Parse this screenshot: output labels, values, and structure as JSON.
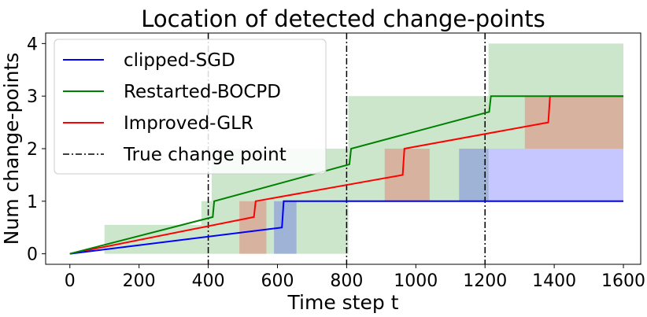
{
  "chart_data": {
    "type": "line",
    "title": "Location of detected change-points",
    "xlabel": "Time step t",
    "ylabel": "Num change-points",
    "xlim": [
      -70,
      1650
    ],
    "ylim": [
      -0.2,
      4.2
    ],
    "xticks": [
      0,
      200,
      400,
      600,
      800,
      1000,
      1200,
      1400,
      1600
    ],
    "yticks": [
      0,
      1,
      2,
      3,
      4
    ],
    "grid": false,
    "legend_position": "upper-left",
    "true_change_points": [
      400,
      800,
      1200
    ],
    "series": [
      {
        "name": "clipped-SGD",
        "color": "#0000ff",
        "step_x": [
          0,
          613,
          618,
          1600
        ],
        "step_y": [
          0,
          0.5,
          1,
          1
        ],
        "band": [
          {
            "x0": 590,
            "x1": 613,
            "lo": 0,
            "hi": 1
          },
          {
            "x0": 613,
            "x1": 655,
            "lo": 0,
            "hi": 1
          },
          {
            "x0": 1125,
            "x1": 1600,
            "lo": 1,
            "hi": 2
          }
        ]
      },
      {
        "name": "Restarted-BOCPD",
        "color": "#008000",
        "step_x": [
          0,
          413,
          417,
          808,
          813,
          1212,
          1217,
          1600
        ],
        "step_y": [
          0,
          0.7,
          1,
          1.7,
          2,
          2.7,
          3,
          3
        ],
        "band": [
          {
            "x0": 100,
            "x1": 380,
            "lo": 0,
            "hi": 0.55
          },
          {
            "x0": 380,
            "x1": 410,
            "lo": 0,
            "hi": 1
          },
          {
            "x0": 410,
            "x1": 805,
            "lo": 0,
            "hi": 2
          },
          {
            "x0": 805,
            "x1": 1210,
            "lo": 1,
            "hi": 3
          },
          {
            "x0": 1210,
            "x1": 1600,
            "lo": 2,
            "hi": 4
          }
        ]
      },
      {
        "name": "Improved-GLR",
        "color": "#ff0000",
        "step_x": [
          0,
          532,
          537,
          962,
          967,
          1383,
          1388,
          1600
        ],
        "step_y": [
          0,
          0.7,
          1,
          1.5,
          2,
          2.5,
          3,
          3
        ],
        "band": [
          {
            "x0": 490,
            "x1": 568,
            "lo": 0,
            "hi": 1
          },
          {
            "x0": 910,
            "x1": 1040,
            "lo": 1,
            "hi": 2
          },
          {
            "x0": 1315,
            "x1": 1600,
            "lo": 2,
            "hi": 3
          }
        ]
      },
      {
        "name": "True change point",
        "color": "#000000"
      }
    ]
  }
}
